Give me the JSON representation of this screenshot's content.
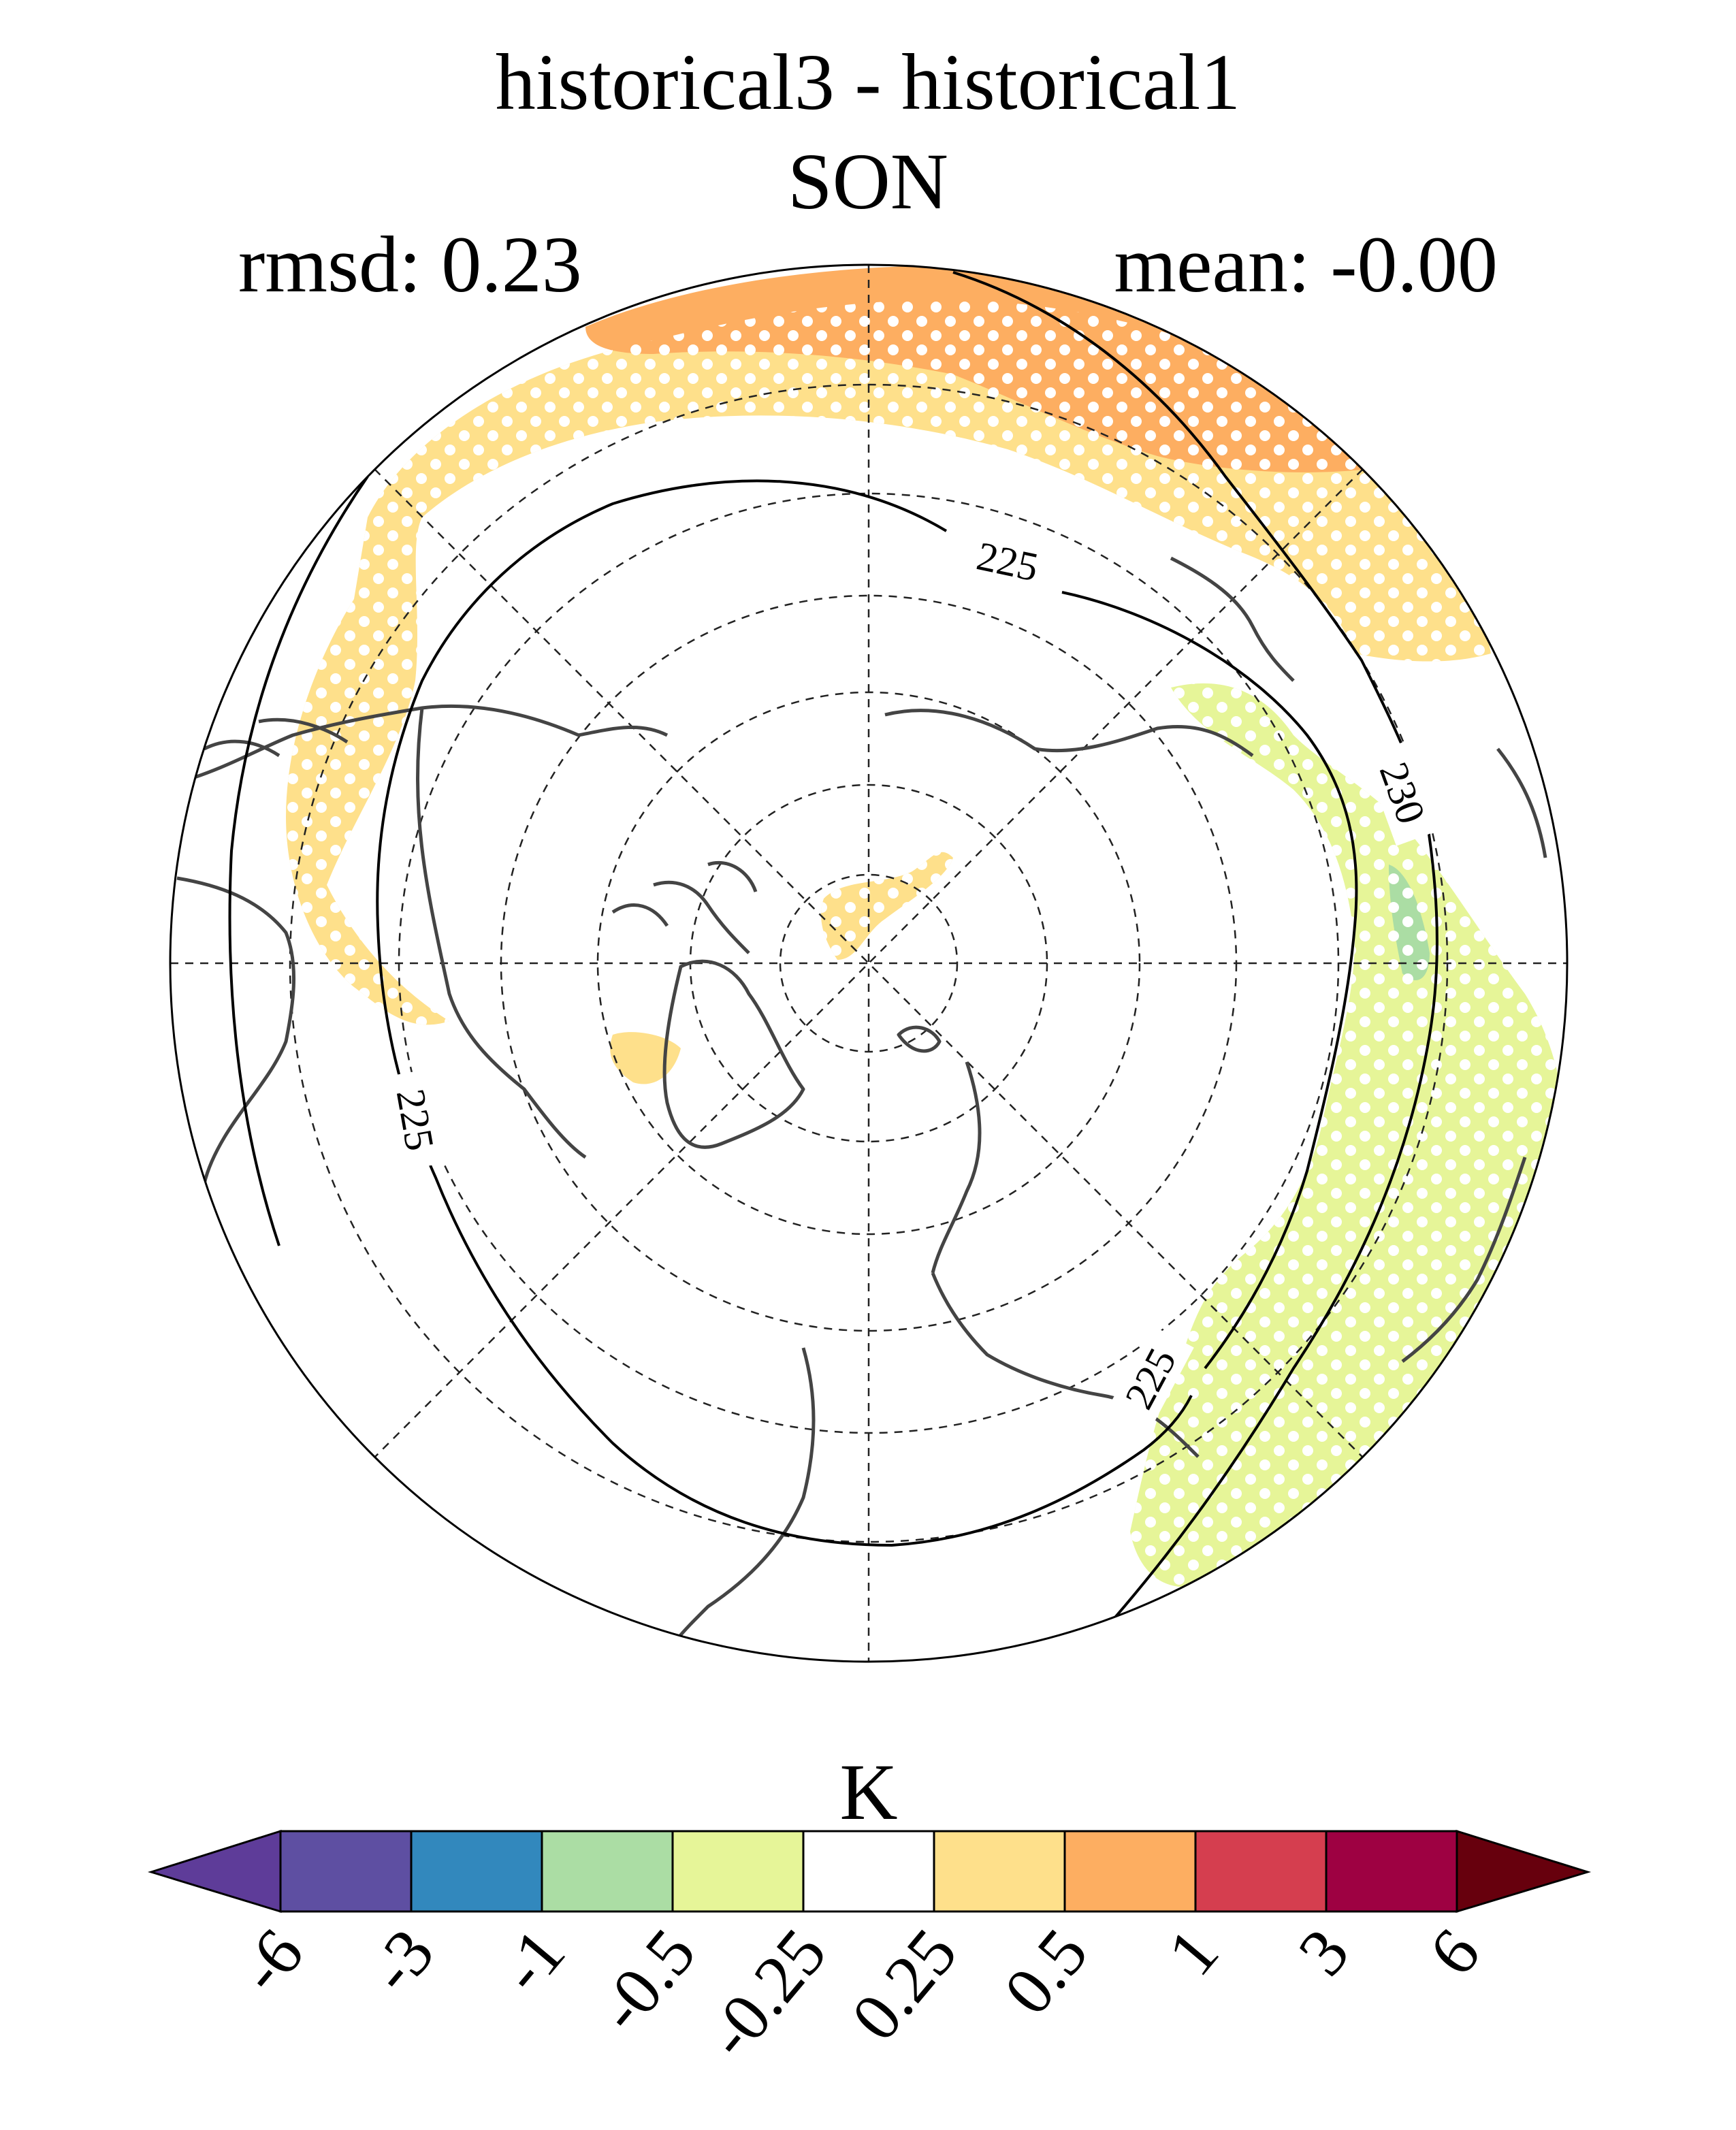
{
  "figure": {
    "title_line1": "historical3 - historical1",
    "title_line2": "SON",
    "rmsd_label": "rmsd: 0.23",
    "mean_label": "mean: -0.00"
  },
  "map": {
    "projection": "north-polar-stereographic",
    "graticule": "dashed",
    "stipple": "white-dots",
    "contours": [
      "225",
      "225",
      "225",
      "230"
    ]
  },
  "colorbar": {
    "unit": "K",
    "ticks": [
      "-6",
      "-3",
      "-1",
      "-0.5",
      "-0.25",
      "0.25",
      "0.5",
      "1",
      "3",
      "6"
    ],
    "colors": [
      "#5e3c99",
      "#5e4fa2",
      "#3288bd",
      "#abdda4",
      "#e6f598",
      "#ffffff",
      "#fee08b",
      "#fdae61",
      "#d53e4f",
      "#9e0142",
      "#67000d"
    ],
    "extend": "both"
  }
}
